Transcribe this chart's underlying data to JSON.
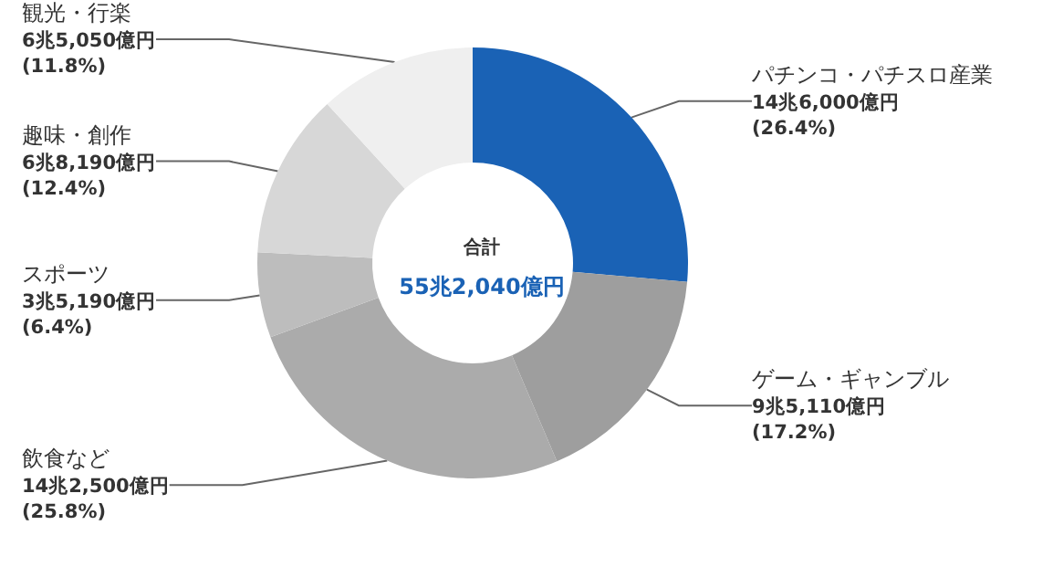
{
  "chart_data": {
    "type": "donut",
    "categories": [
      "パチンコ・パチスロ産業",
      "ゲーム・ギャンブル",
      "飲食など",
      "スポーツ",
      "趣味・創作",
      "観光・行楽"
    ],
    "values": [
      26.4,
      17.2,
      25.8,
      6.4,
      12.4,
      11.8
    ],
    "value_labels": [
      "14兆6,000億円\n(26.4%)",
      "9兆5,110億円\n(17.2%)",
      "14兆2,500億円\n(25.8%)",
      "3兆5,190億円\n(6.4%)",
      "6兆8,190億円\n(12.4%)",
      "6兆5,050億円\n(11.8%)"
    ],
    "colors": [
      "#1a62b5",
      "#9e9e9e",
      "#ababab",
      "#bdbdbd",
      "#d7d7d7",
      "#efefef"
    ],
    "annotations": [
      "合計",
      "55兆2,040億円"
    ],
    "legend": false
  }
}
